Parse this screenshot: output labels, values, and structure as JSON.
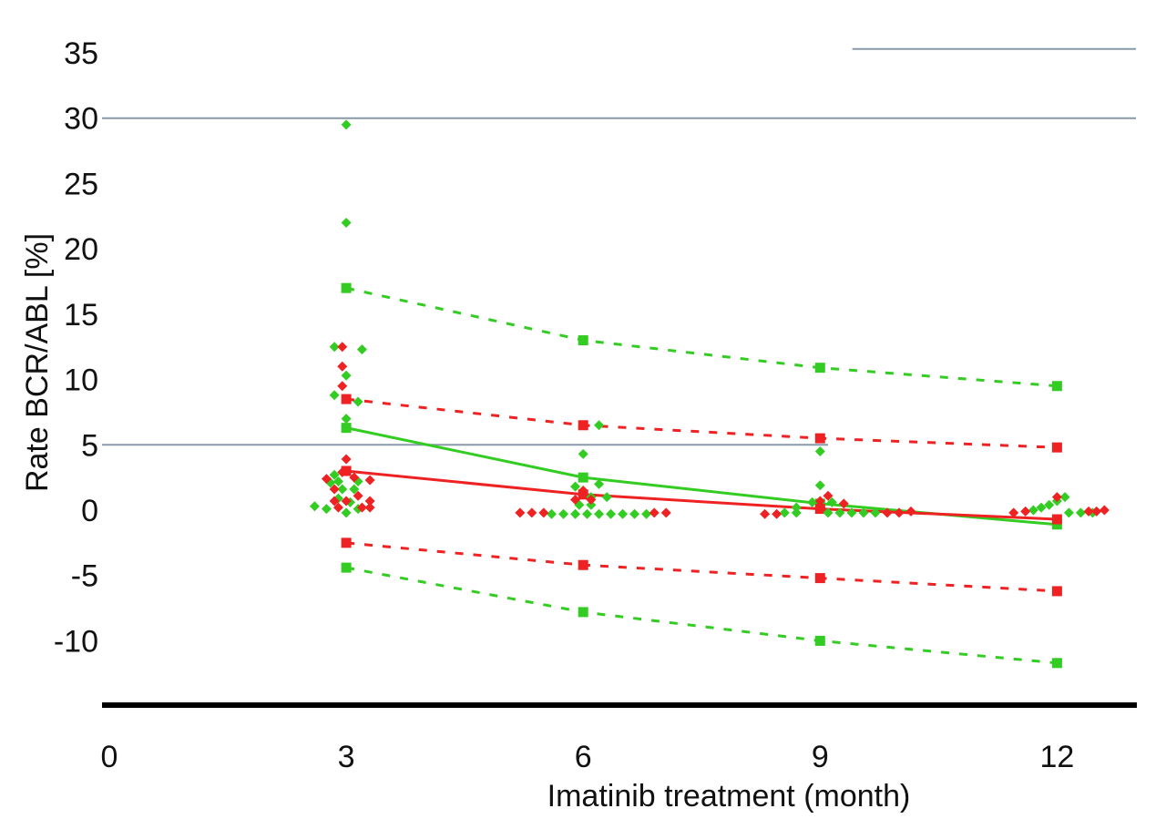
{
  "chart_data": {
    "type": "scatter",
    "title": "",
    "xlabel": "Imatinib treatment (month)",
    "ylabel": "Rate BCR/ABL [%]",
    "xlim": [
      0,
      13
    ],
    "ylim": [
      -15,
      36
    ],
    "x_ticks": [
      0,
      3,
      6,
      9,
      12
    ],
    "y_ticks": [
      35,
      30,
      25,
      20,
      15,
      10,
      5,
      0,
      -5,
      -10
    ],
    "reference_lines": [
      {
        "y": 30,
        "x_from": 0,
        "x_to": 13
      },
      {
        "y": 5,
        "x_from": 0,
        "x_to": 9.1
      },
      {
        "y": 35.3,
        "x_from": 9.5,
        "x_to": 13
      }
    ],
    "colors": {
      "green": "#33cc22",
      "red": "#ee2222",
      "reference": "#8899aa",
      "axis": "#000000"
    },
    "scatter_series": [
      {
        "color": "green",
        "points": [
          [
            3.0,
            29.5
          ],
          [
            3.0,
            22.0
          ],
          [
            3.0,
            17.0
          ],
          [
            2.85,
            12.5
          ],
          [
            3.2,
            12.3
          ],
          [
            3.0,
            10.3
          ],
          [
            2.85,
            8.8
          ],
          [
            3.15,
            8.3
          ],
          [
            3.0,
            7.0
          ],
          [
            2.85,
            2.7
          ],
          [
            2.8,
            2.1
          ],
          [
            2.9,
            2.2
          ],
          [
            3.15,
            2.2
          ],
          [
            2.95,
            1.6
          ],
          [
            3.1,
            1.6
          ],
          [
            2.9,
            0.9
          ],
          [
            3.05,
            0.6
          ],
          [
            2.6,
            0.3
          ],
          [
            2.75,
            0.1
          ],
          [
            3.15,
            0.1
          ],
          [
            3.0,
            -0.2
          ],
          [
            6.2,
            6.5
          ],
          [
            6.0,
            4.3
          ],
          [
            6.2,
            2.0
          ],
          [
            5.9,
            1.8
          ],
          [
            6.1,
            1.0
          ],
          [
            6.3,
            1.0
          ],
          [
            5.95,
            0.4
          ],
          [
            6.1,
            0.4
          ],
          [
            5.6,
            -0.3
          ],
          [
            5.75,
            -0.3
          ],
          [
            5.9,
            -0.3
          ],
          [
            6.05,
            -0.3
          ],
          [
            6.2,
            -0.3
          ],
          [
            6.35,
            -0.3
          ],
          [
            6.5,
            -0.3
          ],
          [
            6.65,
            -0.3
          ],
          [
            6.8,
            -0.3
          ],
          [
            9.0,
            4.5
          ],
          [
            9.0,
            1.9
          ],
          [
            8.9,
            0.6
          ],
          [
            9.15,
            0.6
          ],
          [
            8.7,
            0.2
          ],
          [
            8.55,
            -0.2
          ],
          [
            8.7,
            -0.2
          ],
          [
            9.1,
            -0.2
          ],
          [
            9.25,
            -0.2
          ],
          [
            9.4,
            -0.2
          ],
          [
            9.55,
            -0.2
          ],
          [
            9.7,
            -0.2
          ],
          [
            12.1,
            1.0
          ],
          [
            12.0,
            0.7
          ],
          [
            11.9,
            0.4
          ],
          [
            11.8,
            0.2
          ],
          [
            11.7,
            0.0
          ],
          [
            12.15,
            -0.2
          ],
          [
            12.3,
            -0.2
          ],
          [
            12.45,
            -0.2
          ]
        ]
      },
      {
        "color": "red",
        "points": [
          [
            2.95,
            12.5
          ],
          [
            2.95,
            11.0
          ],
          [
            2.95,
            9.5
          ],
          [
            3.0,
            3.9
          ],
          [
            2.95,
            2.9
          ],
          [
            3.1,
            2.5
          ],
          [
            2.75,
            2.4
          ],
          [
            3.3,
            2.3
          ],
          [
            2.85,
            1.6
          ],
          [
            3.15,
            1.1
          ],
          [
            2.85,
            0.7
          ],
          [
            3.0,
            0.7
          ],
          [
            3.3,
            0.7
          ],
          [
            3.2,
            0.2
          ],
          [
            2.9,
            0.2
          ],
          [
            3.3,
            0.2
          ],
          [
            6.0,
            1.5
          ],
          [
            5.9,
            0.8
          ],
          [
            6.1,
            0.8
          ],
          [
            5.2,
            -0.2
          ],
          [
            5.35,
            -0.2
          ],
          [
            5.5,
            -0.2
          ],
          [
            6.9,
            -0.2
          ],
          [
            7.05,
            -0.2
          ],
          [
            9.1,
            1.1
          ],
          [
            9.0,
            0.7
          ],
          [
            9.3,
            0.5
          ],
          [
            8.3,
            -0.3
          ],
          [
            8.45,
            -0.3
          ],
          [
            9.85,
            -0.2
          ],
          [
            10.0,
            -0.2
          ],
          [
            10.15,
            -0.1
          ],
          [
            12.0,
            1.0
          ],
          [
            11.6,
            -0.1
          ],
          [
            11.45,
            -0.2
          ],
          [
            12.4,
            -0.1
          ],
          [
            12.5,
            -0.1
          ],
          [
            12.6,
            0.0
          ]
        ]
      }
    ],
    "line_series": [
      {
        "color": "green",
        "style": "solid",
        "points": [
          [
            3,
            6.3
          ],
          [
            6,
            2.5
          ],
          [
            9,
            0.5
          ],
          [
            12,
            -1.1
          ]
        ]
      },
      {
        "color": "red",
        "style": "solid",
        "points": [
          [
            3,
            3.0
          ],
          [
            6,
            1.2
          ],
          [
            9,
            0.1
          ],
          [
            12,
            -0.7
          ]
        ]
      },
      {
        "color": "green",
        "style": "dashed",
        "points": [
          [
            3,
            17.0
          ],
          [
            6,
            13.0
          ],
          [
            9,
            10.9
          ],
          [
            12,
            9.5
          ]
        ]
      },
      {
        "color": "red",
        "style": "dashed",
        "points": [
          [
            3,
            8.5
          ],
          [
            6,
            6.5
          ],
          [
            9,
            5.5
          ],
          [
            12,
            4.8
          ]
        ]
      },
      {
        "color": "red",
        "style": "dashed",
        "points": [
          [
            3,
            -2.5
          ],
          [
            6,
            -4.2
          ],
          [
            9,
            -5.2
          ],
          [
            12,
            -6.2
          ]
        ]
      },
      {
        "color": "green",
        "style": "dashed",
        "points": [
          [
            3,
            -4.4
          ],
          [
            6,
            -7.8
          ],
          [
            9,
            -10.0
          ],
          [
            12,
            -11.7
          ]
        ]
      }
    ]
  }
}
